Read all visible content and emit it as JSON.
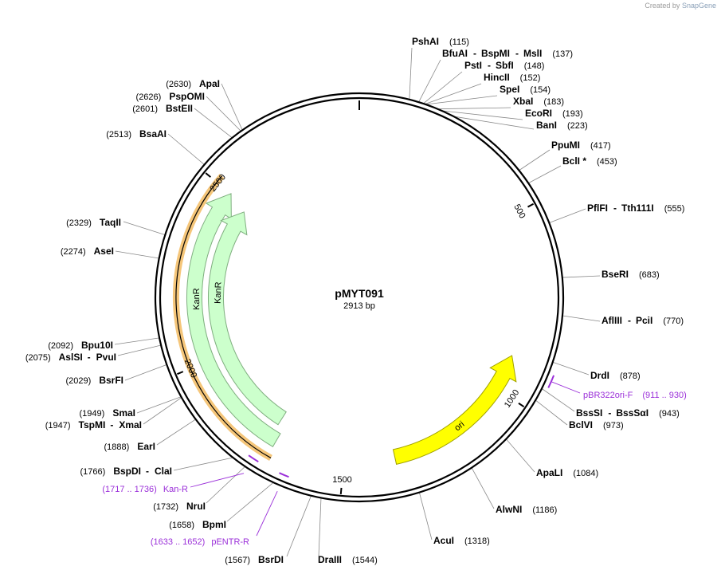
{
  "credit": {
    "prefix": "Created by",
    "brand": "SnapGene"
  },
  "plasmid": {
    "name": "pMYT091",
    "size_label": "2913 bp"
  },
  "ticks": [
    "500",
    "1000",
    "1500",
    "2000",
    "2500"
  ],
  "sites": [
    {
      "name": "PshAI",
      "pos": "(115)"
    },
    {
      "name": "BfuAI",
      "name2": "BspMI",
      "name3": "MslI",
      "pos": "(137)"
    },
    {
      "name": "PstI",
      "name2": "SbfI",
      "pos": "(148)"
    },
    {
      "name": "HincII",
      "pos": "(152)"
    },
    {
      "name": "SpeI",
      "pos": "(154)"
    },
    {
      "name": "XbaI",
      "pos": "(183)"
    },
    {
      "name": "EcoRI",
      "pos": "(193)"
    },
    {
      "name": "BanI",
      "pos": "(223)"
    },
    {
      "name": "PpuMI",
      "pos": "(417)"
    },
    {
      "name": "BclI *",
      "pos": "(453)"
    },
    {
      "name": "PflFI",
      "name2": "Tth111I",
      "pos": "(555)"
    },
    {
      "name": "BseRI",
      "pos": "(683)"
    },
    {
      "name": "AflIII",
      "name2": "PciI",
      "pos": "(770)"
    },
    {
      "name": "DrdI",
      "pos": "(878)"
    },
    {
      "name": "BssSI",
      "name2": "BssSαI",
      "pos": "(943)"
    },
    {
      "name": "BclVI",
      "pos": "(973)"
    },
    {
      "name": "ApaLI",
      "pos": "(1084)"
    },
    {
      "name": "AlwNI",
      "pos": "(1186)"
    },
    {
      "name": "AcuI",
      "pos": "(1318)"
    },
    {
      "name": "DraIII",
      "pos": "(1544)"
    },
    {
      "name": "BsrDI",
      "pos": "(1567)"
    },
    {
      "name": "BpmI",
      "pos": "(1658)"
    },
    {
      "name": "NruI",
      "pos": "(1732)"
    },
    {
      "name": "BspDI",
      "name2": "ClaI",
      "pos": "(1766)"
    },
    {
      "name": "EarI",
      "pos": "(1888)"
    },
    {
      "name": "TspMI",
      "name2": "XmaI",
      "pos": "(1947)"
    },
    {
      "name": "SmaI",
      "pos": "(1949)"
    },
    {
      "name": "BsrFI",
      "pos": "(2029)"
    },
    {
      "name": "AslSI",
      "name2": "PvuI",
      "pos": "(2075)"
    },
    {
      "name": "Bpu10I",
      "pos": "(2092)"
    },
    {
      "name": "AseI",
      "pos": "(2274)"
    },
    {
      "name": "TaqII",
      "pos": "(2329)"
    },
    {
      "name": "BsaAI",
      "pos": "(2513)"
    },
    {
      "name": "BstEII",
      "pos": "(2601)"
    },
    {
      "name": "PspOMI",
      "pos": "(2626)"
    },
    {
      "name": "ApaI",
      "pos": "(2630)"
    }
  ],
  "primers": [
    {
      "name": "pBR322ori-F",
      "range": "(911 .. 930)"
    },
    {
      "name": "Kan-R",
      "range": "(1717 .. 1736)"
    },
    {
      "name": "pENTR-R",
      "range": "(1633 .. 1652)"
    }
  ],
  "features": [
    {
      "name": "ori"
    },
    {
      "name": "KanR"
    },
    {
      "name": "KanR"
    }
  ],
  "colors": {
    "ori": "#ffff00",
    "kanr": "#ccffcc",
    "kanr_stroke": "#7fae7f",
    "highlight": "#f5c67a",
    "primer": "#9b30d9",
    "backbone": "#000000"
  }
}
